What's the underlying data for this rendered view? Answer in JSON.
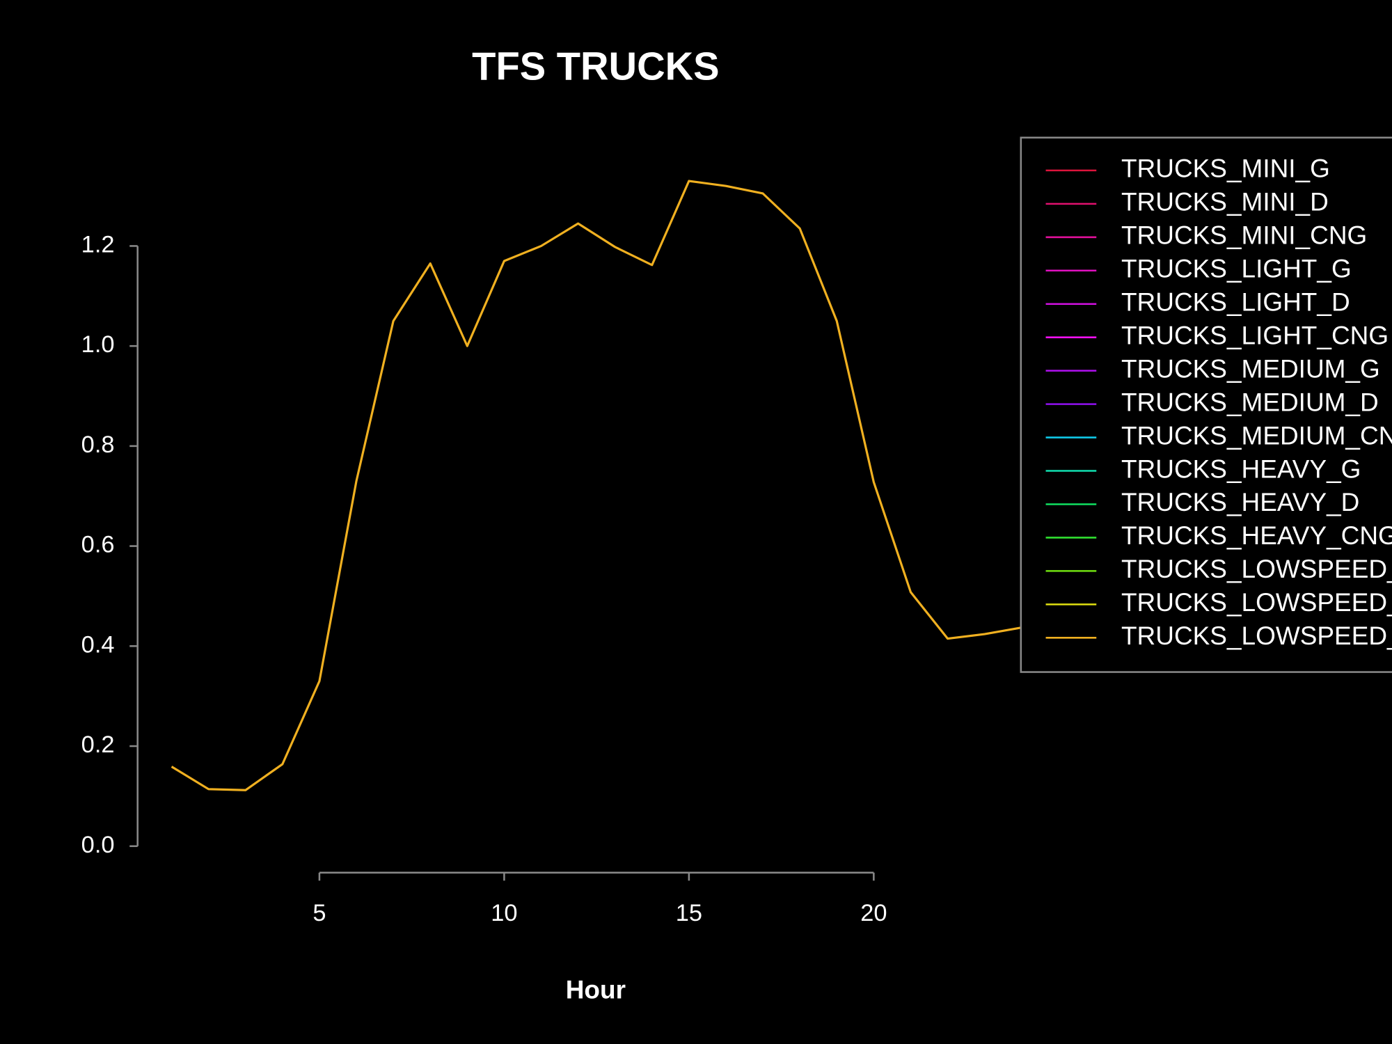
{
  "chart_data": {
    "type": "line",
    "title": "TFS TRUCKS",
    "x_label": "Hour",
    "x": [
      1,
      2,
      3,
      4,
      5,
      6,
      7,
      8,
      9,
      10,
      11,
      12,
      13,
      14,
      15,
      16,
      17,
      18,
      19,
      20,
      21,
      22,
      23,
      24
    ],
    "series": [
      {
        "name": "TRUCKS_MINI_G",
        "color": "#dc143c"
      },
      {
        "name": "TRUCKS_MINI_D",
        "color": "#e0106e"
      },
      {
        "name": "TRUCKS_MINI_CNG",
        "color": "#e0109a"
      },
      {
        "name": "TRUCKS_LIGHT_G",
        "color": "#e010c0"
      },
      {
        "name": "TRUCKS_LIGHT_D",
        "color": "#d010e0"
      },
      {
        "name": "TRUCKS_LIGHT_CNG",
        "color": "#f010f0"
      },
      {
        "name": "TRUCKS_MEDIUM_G",
        "color": "#b010f0"
      },
      {
        "name": "TRUCKS_MEDIUM_D",
        "color": "#9010f0"
      },
      {
        "name": "TRUCKS_MEDIUM_CNG",
        "color": "#10c8e8"
      },
      {
        "name": "TRUCKS_HEAVY_G",
        "color": "#10e0b0"
      },
      {
        "name": "TRUCKS_HEAVY_D",
        "color": "#10e060"
      },
      {
        "name": "TRUCKS_HEAVY_CNG",
        "color": "#30e030"
      },
      {
        "name": "TRUCKS_LOWSPEED_G",
        "color": "#70e010"
      },
      {
        "name": "TRUCKS_LOWSPEED_D",
        "color": "#e0e010"
      },
      {
        "name": "TRUCKS_LOWSPEED_CNG",
        "color": "#f0b020",
        "values": [
          0.159,
          0.114,
          0.112,
          0.164,
          0.33,
          0.73,
          1.05,
          1.165,
          1.0,
          1.17,
          1.2,
          1.245,
          1.198,
          1.162,
          1.33,
          1.32,
          1.305,
          1.235,
          1.05,
          0.728,
          0.508,
          0.415,
          0.424,
          0.437
        ]
      }
    ],
    "xlim": [
      0.08,
      24.92
    ],
    "xticks": [
      5,
      10,
      15,
      20
    ],
    "ylim": [
      -0.053,
      1.383
    ],
    "yticks": [
      {
        "value": 0,
        "label": "0.0"
      },
      0.2,
      0.4,
      0.6,
      0.8,
      {
        "value": 1,
        "label": "1.0"
      },
      1.2
    ],
    "grid": false,
    "legend": "top-right"
  }
}
